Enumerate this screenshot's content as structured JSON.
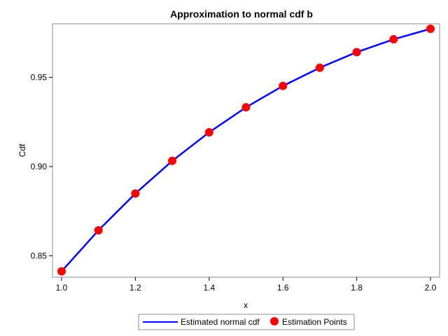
{
  "chart_data": {
    "type": "line",
    "title": "Approximation to normal cdf b",
    "xlabel": "x",
    "ylabel": "Cdf",
    "xlim": [
      1.0,
      2.0
    ],
    "ylim": [
      0.838,
      0.98
    ],
    "x_ticks": [
      1.0,
      1.2,
      1.4,
      1.6,
      1.8,
      2.0
    ],
    "x_tick_labels": [
      "1.0",
      "1.2",
      "1.4",
      "1.6",
      "1.8",
      "2.0"
    ],
    "y_ticks": [
      0.85,
      0.9,
      0.95
    ],
    "y_tick_labels": [
      "0.85",
      "0.90",
      "0.95"
    ],
    "grid": false,
    "legend_position": "bottom",
    "x": [
      1.0,
      1.1,
      1.2,
      1.3,
      1.4,
      1.5,
      1.6,
      1.7,
      1.8,
      1.9,
      2.0
    ],
    "series": [
      {
        "name": "Estimated normal cdf",
        "kind": "line",
        "color": "#0000ff",
        "values": [
          0.8413,
          0.8643,
          0.8849,
          0.9032,
          0.9192,
          0.9332,
          0.9452,
          0.9554,
          0.9641,
          0.9713,
          0.9772
        ]
      },
      {
        "name": "Estimation Points",
        "kind": "markers",
        "color": "#ff0000",
        "values": [
          0.8413,
          0.8643,
          0.8849,
          0.9032,
          0.9192,
          0.9332,
          0.9452,
          0.9554,
          0.9641,
          0.9713,
          0.9772
        ]
      }
    ]
  }
}
